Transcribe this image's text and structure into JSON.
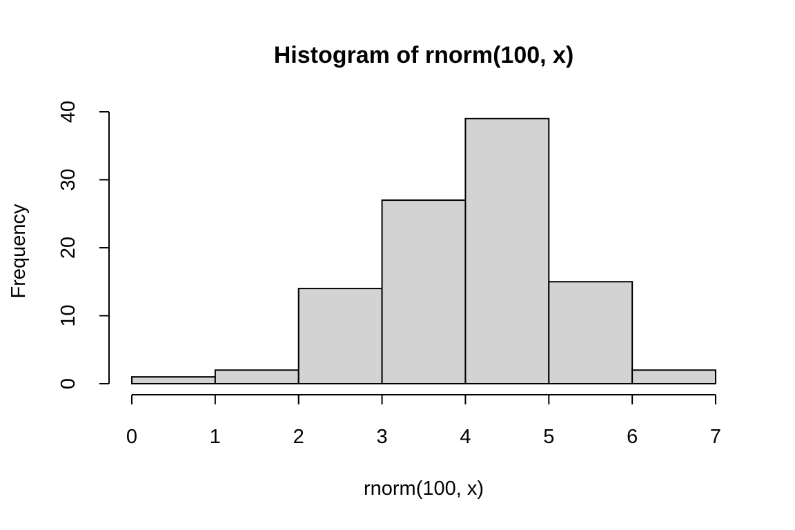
{
  "chart_data": {
    "type": "bar",
    "title": "Histogram of rnorm(100, x)",
    "xlabel": "rnorm(100, x)",
    "ylabel": "Frequency",
    "bins": [
      {
        "x0": 0,
        "x1": 1,
        "count": 1
      },
      {
        "x0": 1,
        "x1": 2,
        "count": 2
      },
      {
        "x0": 2,
        "x1": 3,
        "count": 14
      },
      {
        "x0": 3,
        "x1": 4,
        "count": 27
      },
      {
        "x0": 4,
        "x1": 5,
        "count": 39
      },
      {
        "x0": 5,
        "x1": 6,
        "count": 15
      },
      {
        "x0": 6,
        "x1": 7,
        "count": 2
      }
    ],
    "xlim": [
      0,
      7
    ],
    "ylim": [
      0,
      40
    ],
    "xticks": [
      0,
      1,
      2,
      3,
      4,
      5,
      6,
      7
    ],
    "yticks": [
      0,
      10,
      20,
      30,
      40
    ],
    "bar_color": "#d3d3d3",
    "grid": false
  }
}
